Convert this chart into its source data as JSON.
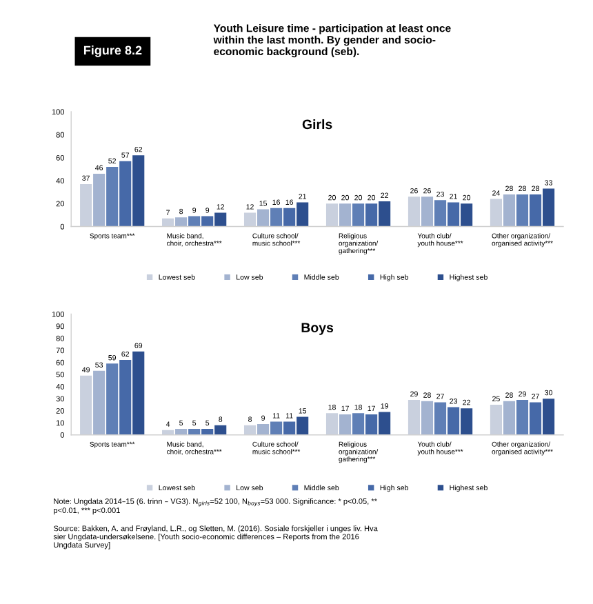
{
  "chart_data": [
    {
      "type": "bar",
      "title": "Girls",
      "annotations": [
        "Figure 8.2",
        "Youth Leisure time - participation at least once\nwithin the last month. By gender and socio-\neconomic background (seb)."
      ],
      "categories": [
        "Sports team***",
        "Music band,\nchoir, orchestra***",
        "Culture school/\nmusic school***",
        "Religious\norganization/\ngathering***",
        "Youth club/\nyouth house***",
        "Other organization/\norganised activity***"
      ],
      "series": [
        {
          "name": "Lowest seb",
          "color": "#c9d0de",
          "values": [
            37,
            7,
            12,
            20,
            26,
            24
          ]
        },
        {
          "name": "Low seb",
          "color": "#a3b3d0",
          "values": [
            46,
            8,
            15,
            20,
            26,
            28
          ]
        },
        {
          "name": "Middle seb",
          "color": "#5f7fb6",
          "values": [
            52,
            9,
            16,
            20,
            23,
            28
          ]
        },
        {
          "name": "High seb",
          "color": "#4669a8",
          "values": [
            57,
            9,
            16,
            20,
            21,
            28
          ]
        },
        {
          "name": "Highest seb",
          "color": "#2d4f8e",
          "values": [
            62,
            12,
            21,
            22,
            20,
            33
          ]
        }
      ],
      "ylim": [
        0,
        100
      ],
      "yticks": [
        0,
        20,
        40,
        60,
        80,
        100
      ],
      "data_labels": true,
      "legend": "bottom",
      "grid": false
    },
    {
      "type": "bar",
      "title": "Boys",
      "annotations": [
        "Note: Ungdata 2014–15 (6. trinn – VG3). N$_{girls}$=52 100, N$_{boys}$=53 000. Significance: * p<0.05, **\np<0.01, *** p<0.001",
        "Source: Bakken, A. and Frøyland, L.R., og Sletten, M. (2016). Sosiale forskjeller i unges liv. Hva\nsier Ungdata-undersøkelsene. [Youth socio-economic differences – Reports from the 2016\nUngdata Survey]"
      ],
      "categories": [
        "Sports team***",
        "Music band,\nchoir, orchestra***",
        "Culture school/\nmusic school***",
        "Religious\norganization/\ngathering***",
        "Youth club/\nyouth house***",
        "Other organization/\norganised activity***"
      ],
      "series": [
        {
          "name": "Lowest seb",
          "color": "#c9d0de",
          "values": [
            49,
            4,
            8,
            18,
            29,
            25
          ]
        },
        {
          "name": "Low seb",
          "color": "#a3b3d0",
          "values": [
            53,
            5,
            9,
            17,
            28,
            28
          ]
        },
        {
          "name": "Middle seb",
          "color": "#5f7fb6",
          "values": [
            59,
            5,
            11,
            18,
            27,
            29
          ]
        },
        {
          "name": "High seb",
          "color": "#4669a8",
          "values": [
            62,
            5,
            11,
            17,
            23,
            27
          ]
        },
        {
          "name": "Highest seb",
          "color": "#2d4f8e",
          "values": [
            69,
            8,
            15,
            19,
            22,
            30
          ]
        }
      ],
      "ylim": [
        0,
        100
      ],
      "yticks": [
        0,
        10,
        20,
        30,
        40,
        50,
        60,
        70,
        80,
        90,
        100
      ],
      "data_labels": true,
      "legend": "bottom",
      "grid": false
    }
  ]
}
